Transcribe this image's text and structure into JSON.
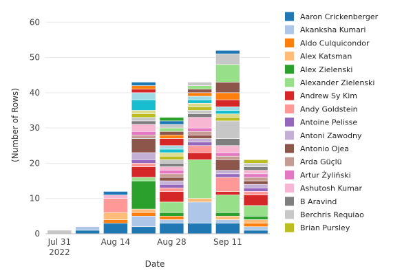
{
  "chart_data": {
    "type": "bar",
    "stacked": true,
    "title": "",
    "xlabel": "Date",
    "ylabel": "(Number of Rows)",
    "ylim": [
      0,
      62
    ],
    "yticks": [
      0,
      10,
      20,
      30,
      40,
      50,
      60
    ],
    "grid": true,
    "legend": "right",
    "x": [
      "2022-07-31",
      "2022-08-07",
      "2022-08-14",
      "2022-08-21",
      "2022-08-28",
      "2022-09-04",
      "2022-09-11",
      "2022-09-18"
    ],
    "x_tick_labels": [
      {
        "x": "2022-07-31",
        "lines": [
          "Jul 31",
          "2022"
        ]
      },
      {
        "x": "2022-08-14",
        "lines": [
          "Aug 14"
        ]
      },
      {
        "x": "2022-08-28",
        "lines": [
          "Aug 28"
        ]
      },
      {
        "x": "2022-09-11",
        "lines": [
          "Sep 11"
        ]
      }
    ],
    "series": [
      {
        "name": "Aaron Crickenberger",
        "color": "#1f77b4",
        "values": [
          0,
          1,
          3,
          2,
          3,
          3,
          3,
          1
        ]
      },
      {
        "name": "Akanksha Kumari",
        "color": "#aec7e8",
        "values": [
          0,
          1,
          0,
          3,
          1,
          6,
          1,
          1
        ]
      },
      {
        "name": "Aldo Culquicondor",
        "color": "#ff7f0e",
        "values": [
          0,
          0,
          1,
          1,
          1,
          0,
          0,
          1
        ]
      },
      {
        "name": "Alex Katsman",
        "color": "#ffbb78",
        "values": [
          0,
          0,
          2,
          1,
          0,
          1,
          1,
          1
        ]
      },
      {
        "name": "Alex Zielenski",
        "color": "#2ca02c",
        "values": [
          0,
          0,
          0,
          8,
          1,
          0,
          1,
          1
        ]
      },
      {
        "name": "Alexander Zielenski",
        "color": "#98df8a",
        "values": [
          0,
          0,
          0,
          1,
          3,
          11,
          5,
          3
        ]
      },
      {
        "name": "Andrew Sy Kim",
        "color": "#d62728",
        "values": [
          0,
          0,
          0,
          3,
          3,
          2,
          1,
          3
        ]
      },
      {
        "name": "Andy Goldstein",
        "color": "#ff9896",
        "values": [
          0,
          0,
          4,
          1,
          1,
          2,
          4,
          1
        ]
      },
      {
        "name": "Antoine Pelisse",
        "color": "#9467bd",
        "values": [
          0,
          0,
          0,
          1,
          1,
          1,
          1,
          1
        ]
      },
      {
        "name": "Antoni Zawodny",
        "color": "#c5b0d5",
        "values": [
          0,
          0,
          0,
          2,
          1,
          1,
          1,
          1
        ]
      },
      {
        "name": "Antonio Ojea",
        "color": "#8c564b",
        "values": [
          0,
          0,
          0,
          4,
          1,
          1,
          3,
          1
        ]
      },
      {
        "name": "Arda Güçlü",
        "color": "#c49c94",
        "values": [
          0,
          0,
          0,
          1,
          1,
          1,
          1,
          1
        ]
      },
      {
        "name": "Artur Żyliński",
        "color": "#e377c2",
        "values": [
          0,
          0,
          0,
          1,
          1,
          1,
          1,
          1
        ]
      },
      {
        "name": "Ashutosh Kumar",
        "color": "#f7b6d2",
        "values": [
          0,
          0,
          1,
          2,
          1,
          3,
          2,
          1
        ]
      },
      {
        "name": "B Aravind",
        "color": "#7f7f7f",
        "values": [
          0,
          0,
          0,
          1,
          1,
          1,
          2,
          1
        ]
      },
      {
        "name": "Berchris Requiao",
        "color": "#c7c7c7",
        "values": [
          1,
          0,
          0,
          1,
          1,
          1,
          5,
          1
        ]
      },
      {
        "name": "Brian Pursley",
        "color": "#bcbd22",
        "values": [
          0,
          0,
          0,
          1,
          1,
          1,
          1,
          1
        ]
      },
      {
        "name": "",
        "color": "#dbdb8d",
        "values": [
          0,
          0,
          0,
          1,
          1,
          1,
          1,
          0
        ]
      },
      {
        "name": "",
        "color": "#17becf",
        "values": [
          0,
          0,
          0,
          3,
          1,
          1,
          1,
          0
        ]
      },
      {
        "name": "",
        "color": "#9edae5",
        "values": [
          0,
          0,
          0,
          2,
          1,
          1,
          1,
          0
        ]
      },
      {
        "name": "",
        "color": "#d62728",
        "values": [
          0,
          0,
          0,
          1,
          2,
          0,
          2,
          0
        ]
      },
      {
        "name": "",
        "color": "#ff7f0e",
        "values": [
          0,
          0,
          0,
          1,
          1,
          1,
          2,
          0
        ]
      },
      {
        "name": "",
        "color": "#8c564b",
        "values": [
          0,
          0,
          0,
          0,
          1,
          1,
          3,
          0
        ]
      },
      {
        "name": "",
        "color": "#98df8a",
        "values": [
          0,
          0,
          0,
          0,
          1,
          1,
          5,
          0
        ]
      },
      {
        "name": "",
        "color": "#c7c7c7",
        "values": [
          0,
          0,
          0,
          0,
          1,
          1,
          3,
          0
        ]
      },
      {
        "name": "",
        "color": "#1f77b4",
        "values": [
          0,
          0,
          1,
          1,
          1,
          0,
          1,
          0
        ]
      },
      {
        "name": "",
        "color": "#2ca02c",
        "values": [
          0,
          0,
          0,
          0,
          1,
          0,
          0,
          0
        ]
      }
    ]
  }
}
